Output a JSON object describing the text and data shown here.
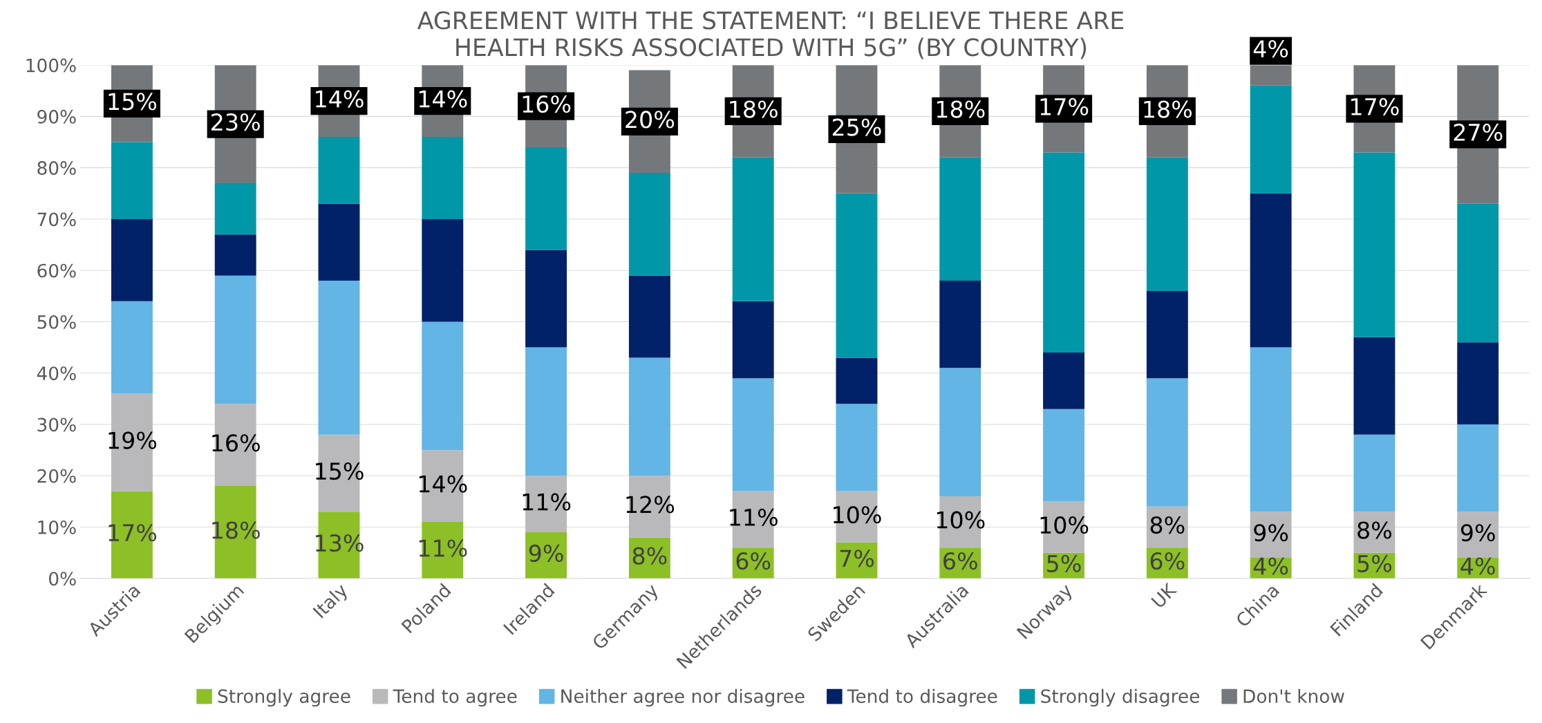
{
  "chart_data": {
    "type": "bar",
    "stacked": true,
    "title": "AGREEMENT WITH THE STATEMENT: “I BELIEVE THERE ARE\nHEALTH RISKS ASSOCIATED WITH 5G” (BY COUNTRY)",
    "categories": [
      "Austria",
      "Belgium",
      "Italy",
      "Poland",
      "Ireland",
      "Germany",
      "Netherlands",
      "Sweden",
      "Australia",
      "Norway",
      "UK",
      "China",
      "Finland",
      "Denmark"
    ],
    "series": [
      {
        "name": "Strongly agree",
        "color": "#8dc026",
        "values": [
          17,
          18,
          13,
          11,
          9,
          8,
          6,
          7,
          6,
          5,
          6,
          4,
          5,
          4
        ],
        "value_labels": [
          "17%",
          "18%",
          "13%",
          "11%",
          "9%",
          "8%",
          "6%",
          "7%",
          "6%",
          "5%",
          "6%",
          "4%",
          "5%",
          "4%"
        ]
      },
      {
        "name": "Tend to agree",
        "color": "#b9b9bc",
        "values": [
          19,
          16,
          15,
          14,
          11,
          12,
          11,
          10,
          10,
          10,
          8,
          9,
          8,
          9
        ],
        "value_labels": [
          "19%",
          "16%",
          "15%",
          "14%",
          "11%",
          "12%",
          "11%",
          "10%",
          "10%",
          "10%",
          "8%",
          "9%",
          "8%",
          "9%"
        ]
      },
      {
        "name": "Neither agree nor disagree",
        "color": "#62b5e5",
        "values": [
          18,
          25,
          30,
          25,
          25,
          23,
          22,
          17,
          25,
          18,
          25,
          32,
          15,
          17
        ]
      },
      {
        "name": "Tend to disagree",
        "color": "#012169",
        "values": [
          16,
          8,
          15,
          20,
          19,
          16,
          15,
          9,
          17,
          11,
          17,
          30,
          19,
          16
        ]
      },
      {
        "name": "Strongly disagree",
        "color": "#0097a9",
        "values": [
          15,
          10,
          13,
          16,
          20,
          20,
          28,
          32,
          24,
          39,
          26,
          21,
          36,
          27
        ]
      },
      {
        "name": "Don't know",
        "color": "#75787b",
        "values": [
          15,
          23,
          14,
          14,
          16,
          20,
          18,
          25,
          18,
          17,
          18,
          4,
          17,
          27
        ],
        "value_labels": [
          "15%",
          "23%",
          "14%",
          "14%",
          "16%",
          "20%",
          "18%",
          "25%",
          "18%",
          "17%",
          "18%",
          "4%",
          "17%",
          "27%"
        ]
      }
    ],
    "ylim": [
      0,
      100
    ],
    "yticks": [
      {
        "value": 0,
        "label": "0%"
      },
      {
        "value": 10,
        "label": "10%"
      },
      {
        "value": 20,
        "label": "20%"
      },
      {
        "value": 30,
        "label": "30%"
      },
      {
        "value": 40,
        "label": "40%"
      },
      {
        "value": 50,
        "label": "50%"
      },
      {
        "value": 60,
        "label": "60%"
      },
      {
        "value": 70,
        "label": "70%"
      },
      {
        "value": 80,
        "label": "80%"
      },
      {
        "value": 90,
        "label": "90%"
      },
      {
        "value": 100,
        "label": "100%"
      }
    ],
    "grid": "y",
    "legend": "bottom"
  }
}
